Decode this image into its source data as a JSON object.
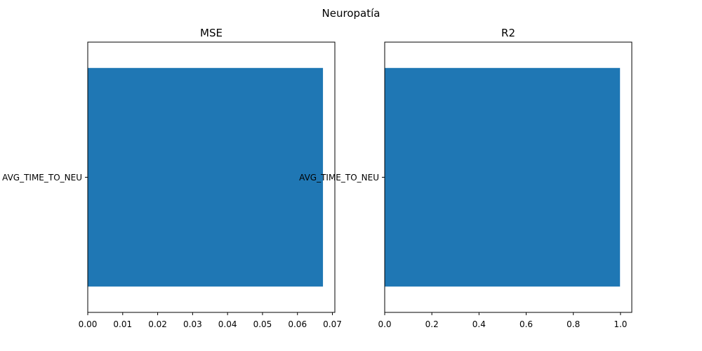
{
  "figure_title": "Neuropatía",
  "colors": {
    "bar": "#1f77b4",
    "axis": "#000000",
    "background": "#ffffff"
  },
  "chart_data": [
    {
      "type": "bar",
      "orientation": "horizontal",
      "title": "MSE",
      "categories": [
        "AVG_TIME_TO_NEU"
      ],
      "values": [
        0.0673
      ],
      "xlim": [
        0,
        0.0707
      ],
      "xticks": [
        0,
        0.01,
        0.02,
        0.03,
        0.04,
        0.05,
        0.06,
        0.07
      ],
      "xtick_labels": [
        "0.00",
        "0.01",
        "0.02",
        "0.03",
        "0.04",
        "0.05",
        "0.06",
        "0.07"
      ],
      "xlabel": "",
      "ylabel": "",
      "grid": false
    },
    {
      "type": "bar",
      "orientation": "horizontal",
      "title": "R2",
      "categories": [
        "AVG_TIME_TO_NEU"
      ],
      "values": [
        0.998
      ],
      "xlim": [
        0,
        1.048
      ],
      "xticks": [
        0,
        0.2,
        0.4,
        0.6,
        0.8,
        1.0
      ],
      "xtick_labels": [
        "0.0",
        "0.2",
        "0.4",
        "0.6",
        "0.8",
        "1.0"
      ],
      "xlabel": "",
      "ylabel": "",
      "grid": false
    }
  ]
}
